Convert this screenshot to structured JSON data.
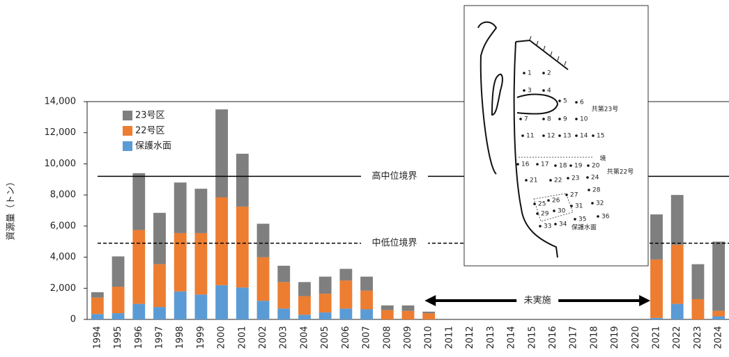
{
  "chart_data": {
    "type": "stacked_bar",
    "y_label": "資源量（トン）",
    "categories": [
      "1994",
      "1995",
      "1996",
      "1997",
      "1998",
      "1999",
      "2000",
      "2001",
      "2002",
      "2003",
      "2004",
      "2005",
      "2006",
      "2007",
      "2008",
      "2009",
      "2010",
      "2011",
      "2012",
      "2013",
      "2014",
      "2015",
      "2016",
      "2017",
      "2018",
      "2019",
      "2020",
      "2021",
      "2022",
      "2023",
      "2024"
    ],
    "series": [
      {
        "name": "保護水面",
        "color": "#5b9bd5",
        "values": [
          350,
          400,
          1000,
          800,
          1800,
          1600,
          2200,
          2050,
          1200,
          700,
          300,
          450,
          700,
          650,
          0,
          0,
          0,
          null,
          null,
          null,
          null,
          null,
          null,
          null,
          null,
          null,
          null,
          100,
          1000,
          0,
          200
        ]
      },
      {
        "name": "22号区",
        "color": "#ed7d31",
        "values": [
          1050,
          1700,
          4750,
          2750,
          3750,
          3950,
          5650,
          5200,
          2800,
          1700,
          1200,
          1200,
          1800,
          1200,
          600,
          550,
          400,
          null,
          null,
          null,
          null,
          null,
          null,
          null,
          null,
          null,
          null,
          3750,
          3800,
          1300,
          350
        ]
      },
      {
        "name": "23号区",
        "color": "#7f7f7f",
        "values": [
          350,
          1950,
          3650,
          3300,
          3250,
          2850,
          5650,
          3400,
          2150,
          1050,
          900,
          1100,
          750,
          900,
          300,
          350,
          100,
          null,
          null,
          null,
          null,
          null,
          null,
          null,
          null,
          null,
          null,
          2900,
          3200,
          2250,
          4450
        ]
      }
    ],
    "ylim": [
      0,
      14000
    ],
    "yticks": [
      0,
      {
        "value": 2000,
        "label": "2,000"
      },
      {
        "value": 4000,
        "label": "4,000"
      },
      {
        "value": 6000,
        "label": "6,000"
      },
      {
        "value": 8000,
        "label": "8,000"
      },
      {
        "value": 10000,
        "label": "10,000"
      },
      {
        "value": 12000,
        "label": "12,000"
      },
      {
        "value": 14000,
        "label": "14,000"
      }
    ],
    "grid": false,
    "legend": "upper left",
    "reference_lines": [
      {
        "label": "高中位境界",
        "value": 9200,
        "style": "solid"
      },
      {
        "label": "中低位境界",
        "value": 4900,
        "style": "dashed"
      }
    ],
    "annotation": "未実施"
  },
  "map": {
    "labels": [
      "1",
      "2",
      "3",
      "4",
      "5",
      "6",
      "7",
      "8",
      "9",
      "10",
      "11",
      "12",
      "13",
      "14",
      "15",
      "16",
      "17",
      "18",
      "19",
      "20",
      "21",
      "22",
      "23",
      "24",
      "25",
      "26",
      "27",
      "28",
      "29",
      "30",
      "31",
      "32",
      "33",
      "34",
      "35",
      "36",
      "共第23号",
      "境",
      "共第22号",
      "保護水面"
    ]
  }
}
